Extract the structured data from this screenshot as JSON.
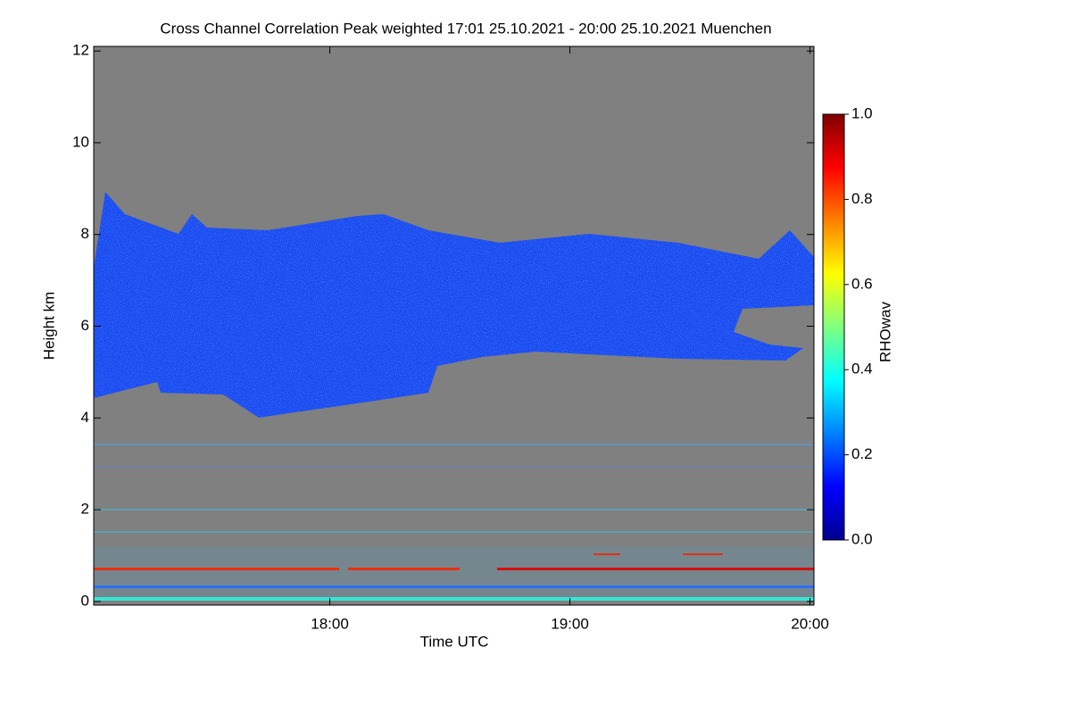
{
  "chart_data": {
    "type": "heatmap",
    "title": "Cross Channel Correlation Peak weighted   17:01 25.10.2021 - 20:00 25.10.2021 Muenchen",
    "xlabel": "Time UTC",
    "ylabel": "Height km",
    "xlim": [
      1021,
      1201
    ],
    "xticks": [
      {
        "value": 1080,
        "label": "18:00"
      },
      {
        "value": 1140,
        "label": "19:00"
      },
      {
        "value": 1200,
        "label": "20:00"
      }
    ],
    "ylim": [
      -0.08,
      12.1
    ],
    "yticks": [
      0,
      2,
      4,
      6,
      8,
      10,
      12
    ],
    "colorbar": {
      "label": "RHOwav",
      "lim": [
        0,
        1
      ],
      "ticks": [
        {
          "value": 0,
          "label": "0.0"
        },
        {
          "value": 0.2,
          "label": "0.2"
        },
        {
          "value": 0.4,
          "label": "0.4"
        },
        {
          "value": 0.6,
          "label": "0.6"
        },
        {
          "value": 0.8,
          "label": "0.8"
        },
        {
          "value": 1,
          "label": "1.0"
        }
      ],
      "colormap": [
        "#00008f",
        "#0000ff",
        "#0080ff",
        "#00ffff",
        "#80ff80",
        "#ffff00",
        "#ff8000",
        "#ff0000",
        "#800000"
      ]
    }
  }
}
